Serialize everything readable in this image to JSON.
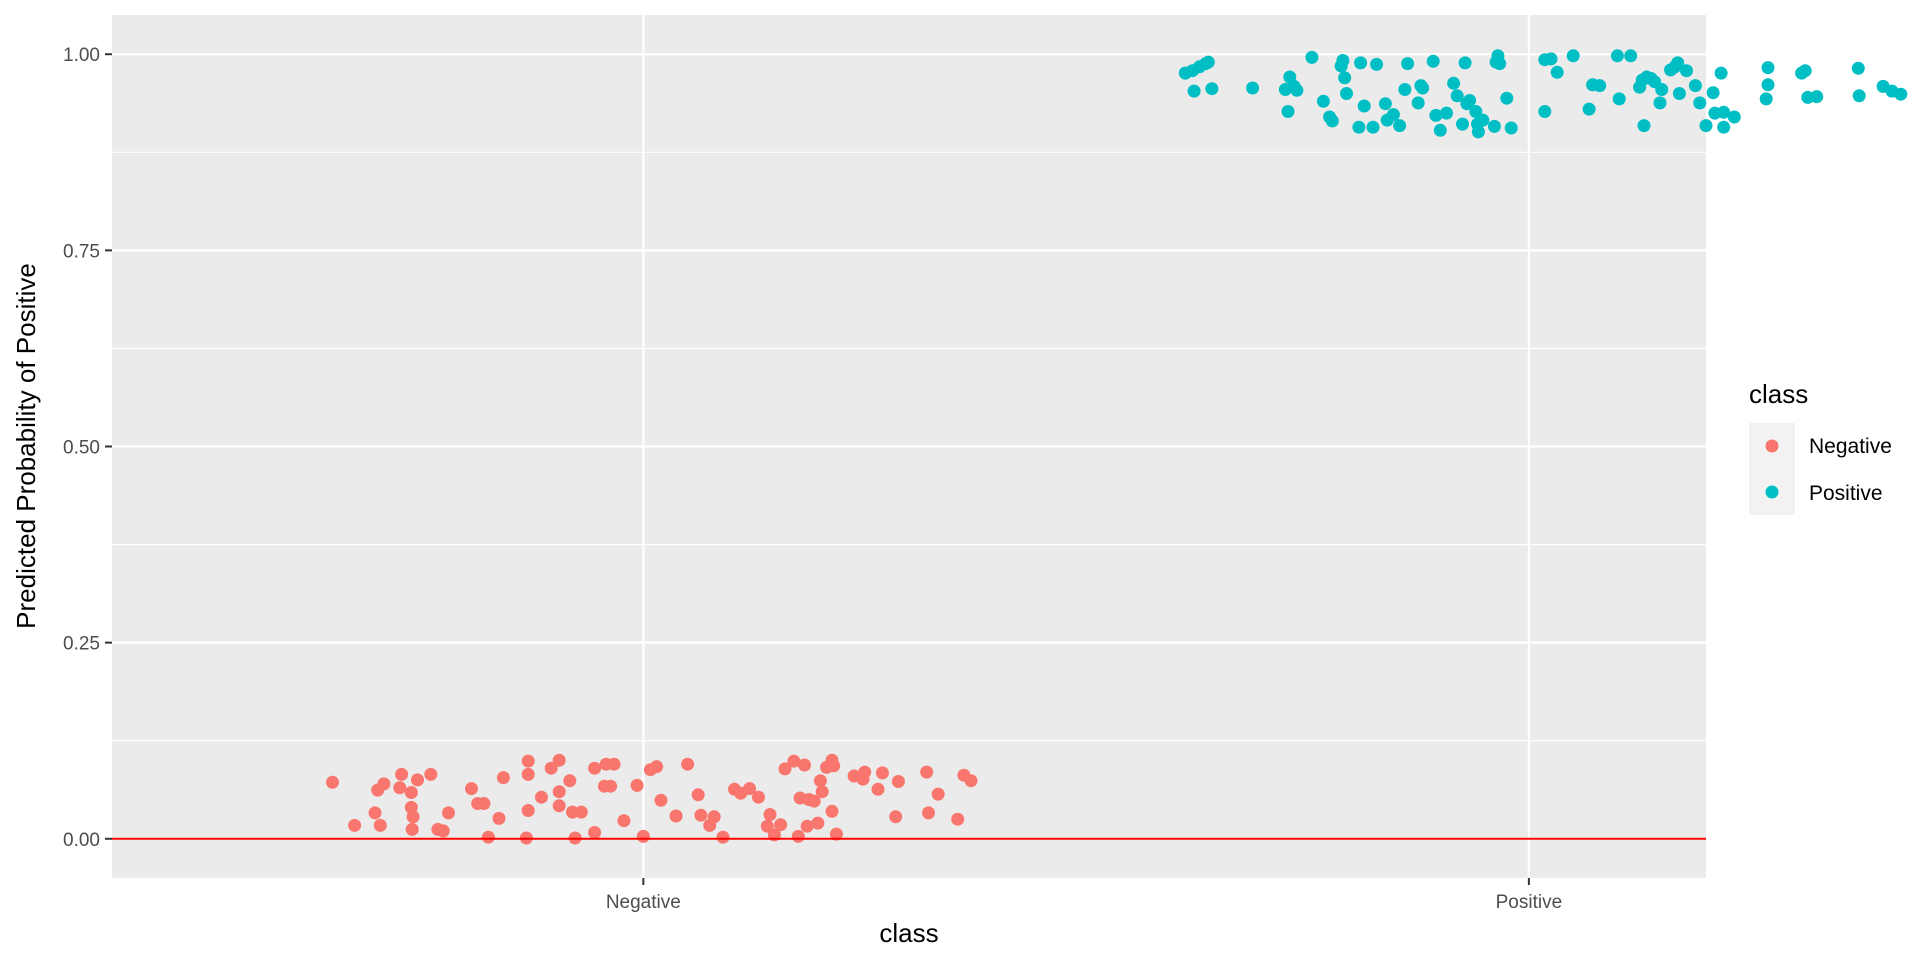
{
  "chart_data": {
    "type": "scatter",
    "title": "",
    "xlabel": "class",
    "ylabel": "Predicted Probability of Positive",
    "categories": [
      "Negative",
      "Positive"
    ],
    "ylim": [
      -0.05,
      1.05
    ],
    "yticks": [
      "0.00",
      "0.25",
      "0.50",
      "0.75",
      "1.00"
    ],
    "grid": true,
    "legend": {
      "title": "class",
      "position": "right",
      "entries": [
        "Negative",
        "Positive"
      ]
    },
    "reference_line": {
      "y": 0,
      "color": "#ff0000"
    },
    "colors": {
      "Negative": "#f8766d",
      "Positive": "#00bfc4",
      "panel": "#ebebeb",
      "grid": "#ffffff"
    },
    "series": [
      {
        "name": "Negative",
        "points": [
          [
            -0.351,
            0.072
          ],
          [
            -0.326,
            0.017
          ],
          [
            -0.303,
            0.033
          ],
          [
            -0.3,
            0.062
          ],
          [
            -0.297,
            0.017
          ],
          [
            -0.293,
            0.07
          ],
          [
            -0.275,
            0.065
          ],
          [
            -0.273,
            0.082
          ],
          [
            -0.262,
            0.059
          ],
          [
            -0.262,
            0.04
          ],
          [
            -0.26,
            0.028
          ],
          [
            -0.261,
            0.012
          ],
          [
            -0.255,
            0.075
          ],
          [
            -0.24,
            0.082
          ],
          [
            -0.232,
            0.012
          ],
          [
            -0.226,
            0.01
          ],
          [
            -0.22,
            0.033
          ],
          [
            -0.194,
            0.064
          ],
          [
            -0.187,
            0.045
          ],
          [
            -0.18,
            0.045
          ],
          [
            -0.175,
            0.002
          ],
          [
            -0.163,
            0.026
          ],
          [
            -0.158,
            0.078
          ],
          [
            -0.132,
            0.001
          ],
          [
            -0.13,
            0.036
          ],
          [
            -0.13,
            0.082
          ],
          [
            -0.13,
            0.099
          ],
          [
            -0.115,
            0.053
          ],
          [
            -0.104,
            0.09
          ],
          [
            -0.095,
            0.06
          ],
          [
            -0.095,
            0.042
          ],
          [
            -0.095,
            0.1
          ],
          [
            -0.083,
            0.074
          ],
          [
            -0.08,
            0.034
          ],
          [
            -0.077,
            0.001
          ],
          [
            -0.07,
            0.034
          ],
          [
            -0.055,
            0.008
          ],
          [
            -0.055,
            0.09
          ],
          [
            -0.044,
            0.067
          ],
          [
            -0.042,
            0.095
          ],
          [
            -0.037,
            0.067
          ],
          [
            -0.033,
            0.095
          ],
          [
            -0.022,
            0.023
          ],
          [
            -0.007,
            0.068
          ],
          [
            0.0,
            0.003
          ],
          [
            0.008,
            0.088
          ],
          [
            0.015,
            0.092
          ],
          [
            0.02,
            0.049
          ],
          [
            0.037,
            0.029
          ],
          [
            0.05,
            0.095
          ],
          [
            0.062,
            0.056
          ],
          [
            0.065,
            0.03
          ],
          [
            0.075,
            0.017
          ],
          [
            0.08,
            0.028
          ],
          [
            0.09,
            0.002
          ],
          [
            0.103,
            0.063
          ],
          [
            0.11,
            0.058
          ],
          [
            0.12,
            0.064
          ],
          [
            0.13,
            0.053
          ],
          [
            0.14,
            0.016
          ],
          [
            0.143,
            0.031
          ],
          [
            0.148,
            0.005
          ],
          [
            0.155,
            0.018
          ],
          [
            0.16,
            0.089
          ],
          [
            0.17,
            0.099
          ],
          [
            0.175,
            0.003
          ],
          [
            0.177,
            0.052
          ],
          [
            0.182,
            0.094
          ],
          [
            0.185,
            0.016
          ],
          [
            0.187,
            0.05
          ],
          [
            0.193,
            0.048
          ],
          [
            0.197,
            0.02
          ],
          [
            0.2,
            0.074
          ],
          [
            0.202,
            0.06
          ],
          [
            0.207,
            0.091
          ],
          [
            0.213,
            0.035
          ],
          [
            0.215,
            0.093
          ],
          [
            0.213,
            0.1
          ],
          [
            0.218,
            0.006
          ],
          [
            0.238,
            0.08
          ],
          [
            0.248,
            0.076
          ],
          [
            0.25,
            0.085
          ],
          [
            0.265,
            0.063
          ],
          [
            0.27,
            0.084
          ],
          [
            0.285,
            0.028
          ],
          [
            0.288,
            0.073
          ],
          [
            0.32,
            0.085
          ],
          [
            0.322,
            0.033
          ],
          [
            0.333,
            0.057
          ],
          [
            0.355,
            0.025
          ],
          [
            0.362,
            0.081
          ],
          [
            0.37,
            0.074
          ]
        ]
      },
      {
        "name": "Positive",
        "points": [
          [
            -0.388,
            0.976
          ],
          [
            -0.38,
            0.979
          ],
          [
            -0.378,
            0.953
          ],
          [
            -0.372,
            0.984
          ],
          [
            -0.365,
            0.988
          ],
          [
            -0.362,
            0.99
          ],
          [
            -0.358,
            0.956
          ],
          [
            -0.312,
            0.957
          ],
          [
            -0.275,
            0.955
          ],
          [
            -0.272,
            0.927
          ],
          [
            -0.27,
            0.971
          ],
          [
            -0.265,
            0.959
          ],
          [
            -0.262,
            0.954
          ],
          [
            -0.245,
            0.996
          ],
          [
            -0.232,
            0.94
          ],
          [
            -0.225,
            0.92
          ],
          [
            -0.222,
            0.915
          ],
          [
            -0.212,
            0.985
          ],
          [
            -0.21,
            0.992
          ],
          [
            -0.208,
            0.97
          ],
          [
            -0.206,
            0.95
          ],
          [
            -0.192,
            0.907
          ],
          [
            -0.19,
            0.989
          ],
          [
            -0.186,
            0.934
          ],
          [
            -0.176,
            0.907
          ],
          [
            -0.172,
            0.987
          ],
          [
            -0.162,
            0.937
          ],
          [
            -0.16,
            0.916
          ],
          [
            -0.153,
            0.923
          ],
          [
            -0.146,
            0.909
          ],
          [
            -0.14,
            0.955
          ],
          [
            -0.137,
            0.988
          ],
          [
            -0.125,
            0.938
          ],
          [
            -0.122,
            0.96
          ],
          [
            -0.12,
            0.957
          ],
          [
            -0.108,
            0.991
          ],
          [
            -0.105,
            0.922
          ],
          [
            -0.1,
            0.903
          ],
          [
            -0.093,
            0.925
          ],
          [
            -0.085,
            0.963
          ],
          [
            -0.081,
            0.947
          ],
          [
            -0.072,
            0.989
          ],
          [
            -0.075,
            0.911
          ],
          [
            -0.07,
            0.937
          ],
          [
            -0.067,
            0.941
          ],
          [
            -0.06,
            0.927
          ],
          [
            -0.058,
            0.911
          ],
          [
            -0.057,
            0.901
          ],
          [
            -0.052,
            0.916
          ],
          [
            -0.039,
            0.908
          ],
          [
            -0.037,
            0.99
          ],
          [
            -0.035,
            0.998
          ],
          [
            -0.033,
            0.988
          ],
          [
            -0.025,
            0.944
          ],
          [
            -0.02,
            0.906
          ],
          [
            0.018,
            0.927
          ],
          [
            0.018,
            0.993
          ],
          [
            0.025,
            0.994
          ],
          [
            0.032,
            0.977
          ],
          [
            0.05,
            0.998
          ],
          [
            0.068,
            0.93
          ],
          [
            0.072,
            0.961
          ],
          [
            0.08,
            0.96
          ],
          [
            0.1,
            0.998
          ],
          [
            0.102,
            0.943
          ],
          [
            0.115,
            0.998
          ],
          [
            0.125,
            0.958
          ],
          [
            0.128,
            0.967
          ],
          [
            0.13,
            0.909
          ],
          [
            0.133,
            0.971
          ],
          [
            0.138,
            0.969
          ],
          [
            0.142,
            0.965
          ],
          [
            0.148,
            0.938
          ],
          [
            0.15,
            0.955
          ],
          [
            0.16,
            0.98
          ],
          [
            0.165,
            0.984
          ],
          [
            0.168,
            0.989
          ],
          [
            0.17,
            0.95
          ],
          [
            0.178,
            0.979
          ],
          [
            0.188,
            0.96
          ],
          [
            0.193,
            0.938
          ],
          [
            0.2,
            0.909
          ],
          [
            0.208,
            0.951
          ],
          [
            0.21,
            0.925
          ],
          [
            0.217,
            0.976
          ],
          [
            0.22,
            0.926
          ],
          [
            0.22,
            0.907
          ],
          [
            0.232,
            0.92
          ],
          [
            0.268,
            0.943
          ],
          [
            0.27,
            0.961
          ],
          [
            0.27,
            0.983
          ],
          [
            0.308,
            0.976
          ],
          [
            0.312,
            0.979
          ],
          [
            0.315,
            0.945
          ],
          [
            0.325,
            0.946
          ],
          [
            0.372,
            0.982
          ],
          [
            0.373,
            0.947
          ],
          [
            0.4,
            0.959
          ],
          [
            0.41,
            0.953
          ],
          [
            0.42,
            0.949
          ]
        ]
      }
    ]
  }
}
